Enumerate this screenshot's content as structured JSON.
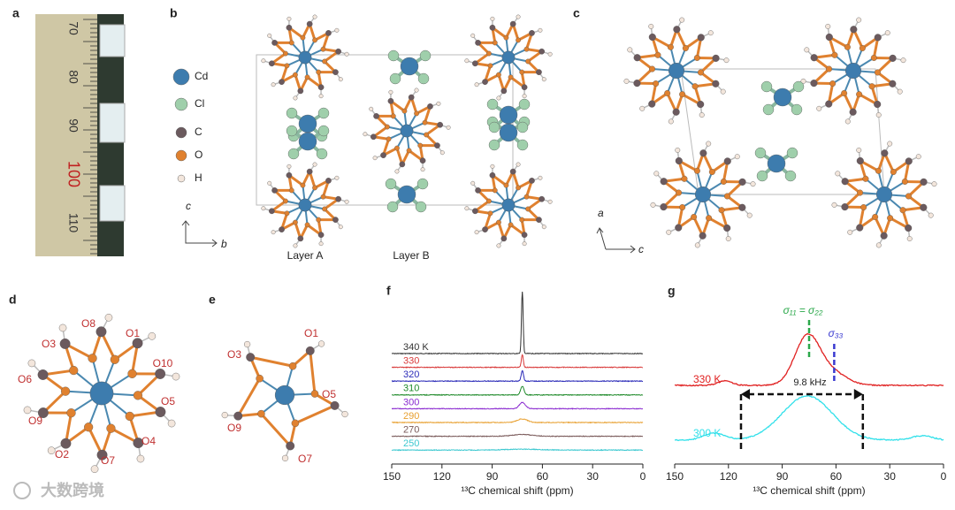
{
  "panels": {
    "a": {
      "label": "a",
      "ruler_labels": [
        "70",
        "80",
        "90",
        "100",
        "110"
      ]
    },
    "b": {
      "label": "b",
      "legend": [
        {
          "name": "Cd",
          "color": "#3d7cae"
        },
        {
          "name": "Cl",
          "color": "#9fcfab"
        },
        {
          "name": "C",
          "color": "#6b5a5e"
        },
        {
          "name": "O",
          "color": "#e0812f"
        },
        {
          "name": "H",
          "color": "#f3e6dc"
        }
      ],
      "axes": [
        "c",
        "b"
      ],
      "layers": [
        "Layer A",
        "Layer B"
      ]
    },
    "c": {
      "label": "c",
      "axes": [
        "a",
        "c"
      ]
    },
    "d": {
      "label": "d",
      "atoms": [
        "O8",
        "O1",
        "O3",
        "O10",
        "O6",
        "O5",
        "O9",
        "O4",
        "O2",
        "O7"
      ]
    },
    "e": {
      "label": "e",
      "atoms": [
        "O1",
        "O3",
        "O5",
        "O9",
        "O7"
      ]
    },
    "f": {
      "label": "f",
      "traces": [
        {
          "name": "340 K",
          "color": "#333333"
        },
        {
          "name": "330",
          "color": "#d93a3a"
        },
        {
          "name": "320",
          "color": "#2a2ab8"
        },
        {
          "name": "310",
          "color": "#1f8a2a"
        },
        {
          "name": "300",
          "color": "#8a2ad0"
        },
        {
          "name": "290",
          "color": "#e8a030"
        },
        {
          "name": "270",
          "color": "#7a5a5a"
        },
        {
          "name": "250",
          "color": "#3cc8d0"
        }
      ],
      "xlim": [
        150,
        0
      ],
      "xticks": [
        150,
        120,
        90,
        60,
        30,
        0
      ],
      "xlabel": "¹³C chemical shift (ppm)"
    },
    "g": {
      "label": "g",
      "traces": [
        {
          "name": "330 K",
          "color": "#e02020"
        },
        {
          "name": "300 K",
          "color": "#30e0ea"
        }
      ],
      "xlim": [
        150,
        0
      ],
      "xticks": [
        150,
        120,
        90,
        60,
        30,
        0
      ],
      "xlabel": "¹³C chemical shift (ppm)",
      "annotations": [
        {
          "text": "σ₁₁ = σ₂₂",
          "color": "#2aa84a"
        },
        {
          "text": "σ₃₃",
          "color": "#3a3ad0"
        },
        {
          "text": "9.8 kHz",
          "color": "#222222"
        }
      ]
    }
  },
  "watermark": "大数跨境"
}
